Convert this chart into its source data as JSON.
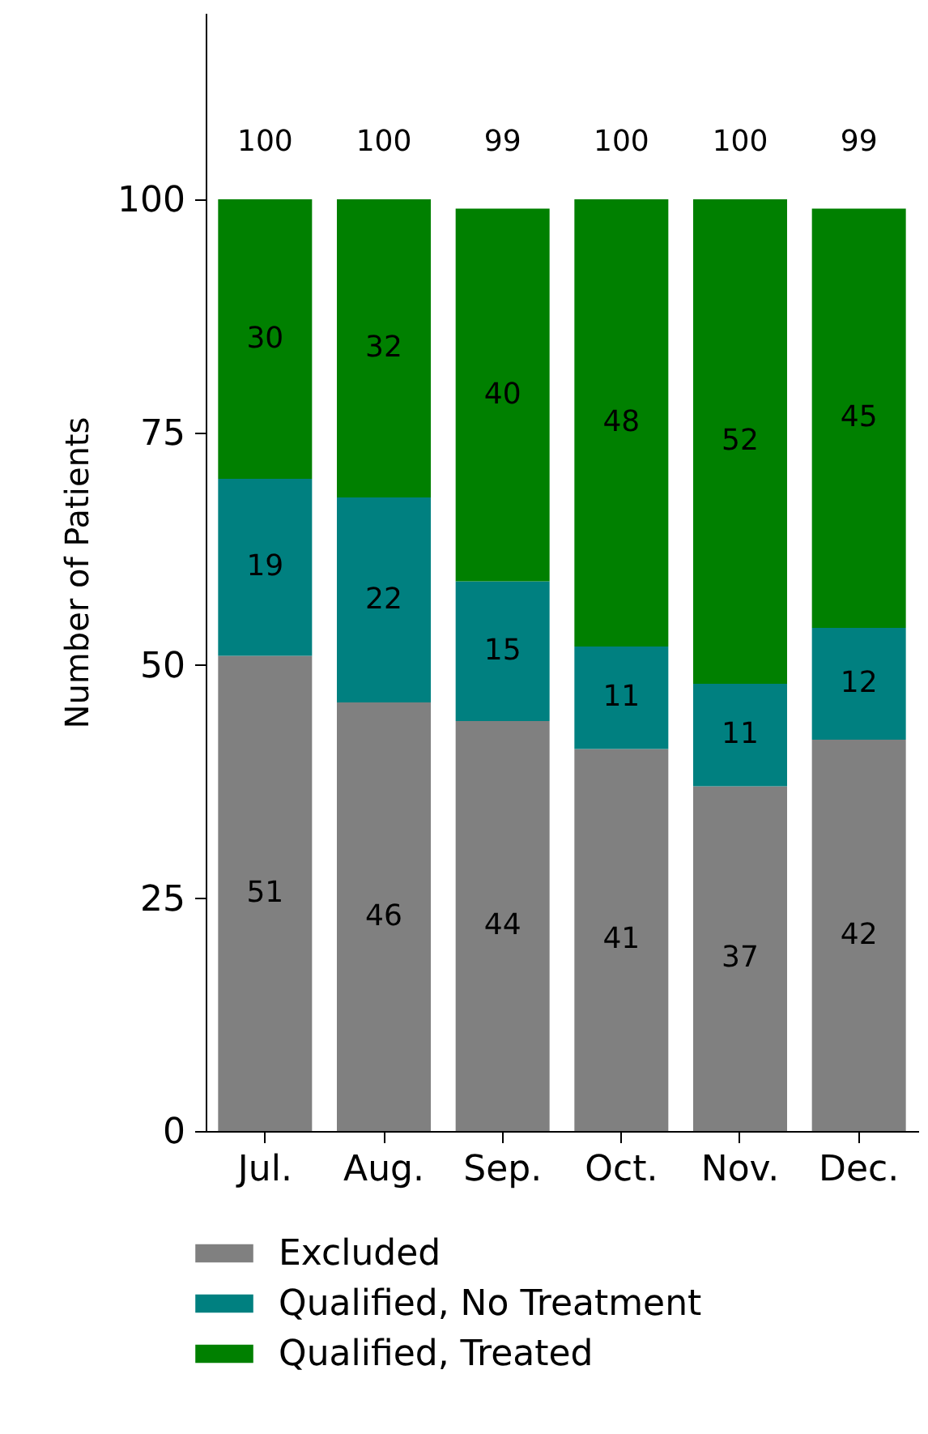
{
  "chart_data": {
    "type": "bar",
    "stacked": true,
    "ylabel": "Number of Patients",
    "categories": [
      "Jul.",
      "Aug.",
      "Sep.",
      "Oct.",
      "Nov.",
      "Dec."
    ],
    "series": [
      {
        "name": "Excluded",
        "color": "#808080",
        "values": [
          51,
          46,
          44,
          41,
          37,
          42
        ]
      },
      {
        "name": "Qualified, No Treatment",
        "color": "#008080",
        "values": [
          19,
          22,
          15,
          11,
          11,
          12
        ]
      },
      {
        "name": "Qualified, Treated",
        "color": "#008000",
        "values": [
          30,
          32,
          40,
          48,
          52,
          45
        ]
      }
    ],
    "totals": [
      "100",
      "100",
      "99",
      "100",
      "100",
      "99"
    ],
    "data_labels": true,
    "ylim": [
      0,
      120
    ],
    "yticks": [
      0,
      25,
      50,
      75,
      100
    ],
    "grid": false,
    "legend": "bottom"
  }
}
